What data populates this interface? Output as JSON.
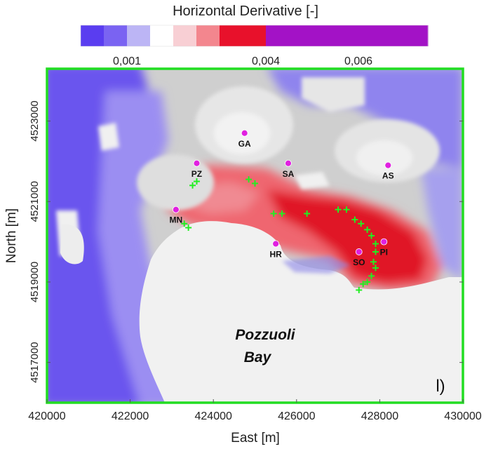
{
  "chart_data": {
    "type": "heatmap",
    "title": "Horizontal Derivative [-]",
    "xlabel": "East [m]",
    "ylabel": "North [m]",
    "xlim": [
      420000,
      430000
    ],
    "ylim": [
      4516000,
      4524300
    ],
    "x_ticks": [
      420000,
      422000,
      424000,
      426000,
      428000,
      430000
    ],
    "x_tick_labels": [
      "420000",
      "422000",
      "424000",
      "426000",
      "428000",
      "430000"
    ],
    "y_ticks": [
      4517000,
      4519000,
      4521000,
      4523000
    ],
    "y_tick_labels": [
      "4517000",
      "4519000",
      "4521000",
      "4523000"
    ],
    "colorbar": {
      "range": [
        0,
        0.0075
      ],
      "ticks": [
        0.001,
        0.004,
        0.006
      ],
      "tick_labels": [
        "0,001",
        "0,004",
        "0,006"
      ],
      "colors": [
        "#5a3df0",
        "#7a63f2",
        "#bcb5f5",
        "#ffffff",
        "#f8cfd4",
        "#f3868e",
        "#e8112b",
        "#e8112b",
        "#a312c6",
        "#a312c6",
        "#a312c6",
        "#a312c6",
        "#a312c6",
        "#a312c6",
        "#a312c6"
      ]
    },
    "stations": [
      {
        "label": "GA",
        "x": 424750,
        "y": 4522700
      },
      {
        "label": "PZ",
        "x": 423600,
        "y": 4521950
      },
      {
        "label": "SA",
        "x": 425800,
        "y": 4521950
      },
      {
        "label": "AS",
        "x": 428200,
        "y": 4521900
      },
      {
        "label": "MN",
        "x": 423100,
        "y": 4520800
      },
      {
        "label": "HR",
        "x": 425500,
        "y": 4519950
      },
      {
        "label": "SO",
        "x": 427500,
        "y": 4519750
      },
      {
        "label": "PI",
        "x": 428100,
        "y": 4520000
      }
    ],
    "crosses": [
      [
        423600,
        4521500
      ],
      [
        423500,
        4521400
      ],
      [
        423300,
        4520450
      ],
      [
        423400,
        4520350
      ],
      [
        424850,
        4521550
      ],
      [
        425000,
        4521450
      ],
      [
        425450,
        4520700
      ],
      [
        425650,
        4520700
      ],
      [
        426250,
        4520700
      ],
      [
        427000,
        4520800
      ],
      [
        427200,
        4520800
      ],
      [
        427400,
        4520550
      ],
      [
        427550,
        4520450
      ],
      [
        427700,
        4520300
      ],
      [
        427800,
        4520150
      ],
      [
        427900,
        4519950
      ],
      [
        427900,
        4519750
      ],
      [
        427850,
        4519500
      ],
      [
        427900,
        4519350
      ],
      [
        427800,
        4519150
      ],
      [
        427700,
        4519000
      ],
      [
        427600,
        4518950
      ],
      [
        427500,
        4518800
      ]
    ],
    "annotations": [
      "Pozzuoli",
      "Bay",
      "l)"
    ],
    "grid": false
  },
  "colors": {
    "frame": "#22dd22",
    "station": "#e020e0",
    "cross": "#22ee22",
    "sea": "#f0f0f0",
    "land_gray": "#c8c8c8",
    "blue_zone": "#5a3df0",
    "red_zone": "#e01826"
  }
}
